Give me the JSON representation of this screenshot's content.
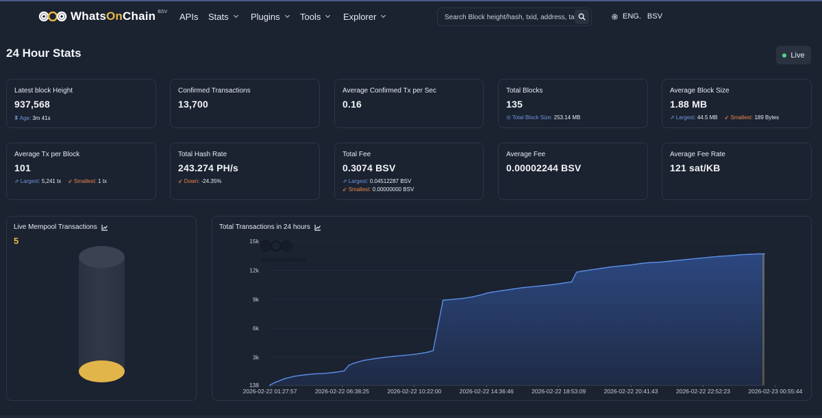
{
  "nav": {
    "brand": {
      "name_pre": "Whats",
      "name_on": "On",
      "name_post": "Chain",
      "sup": "BSV",
      "icon": "whatsonchain-logo-icon"
    },
    "items": [
      "APIs",
      "Stats",
      "Plugins",
      "Tools",
      "Explorer"
    ],
    "search_placeholder": "Search Block height/hash, txid, address, tags",
    "language": "ENG.",
    "network": "BSV"
  },
  "page": {
    "title": "24 Hour Stats",
    "live_label": "Live"
  },
  "cards": {
    "latest_block": {
      "label": "Latest block Height",
      "value": "937,568",
      "sub_key": "Age:",
      "sub_val": "3m 41s"
    },
    "confirmed_tx": {
      "label": "Confirmed Transactions",
      "value": "13,700"
    },
    "avg_tx_sec": {
      "label": "Average Confirmed Tx per Sec",
      "value": "0.16"
    },
    "total_blocks": {
      "label": "Total Blocks",
      "value": "135",
      "sub_key": "Total Block Size:",
      "sub_val": "253.14 MB"
    },
    "avg_block_size": {
      "label": "Average Block Size",
      "value": "1.88 MB",
      "largest_key": "Largest:",
      "largest_val": "44.5 MB",
      "smallest_key": "Smallest:",
      "smallest_val": "189 Bytes"
    },
    "avg_tx_block": {
      "label": "Average Tx per Block",
      "value": "101",
      "largest_key": "Largest:",
      "largest_val": "5,241 tx",
      "smallest_key": "Smallest:",
      "smallest_val": "1 tx"
    },
    "hash_rate": {
      "label": "Total Hash Rate",
      "value": "243.274 PH/s",
      "sub_key": "Down:",
      "sub_val": "-24.35%"
    },
    "total_fee": {
      "label": "Total Fee",
      "value": "0.3074 BSV",
      "largest_key": "Largest:",
      "largest_val": "0.04512287 BSV",
      "smallest_key": "Smallest:",
      "smallest_val": "0.00000000 BSV"
    },
    "avg_fee": {
      "label": "Average Fee",
      "value": "0.00002244 BSV"
    },
    "avg_fee_rate": {
      "label": "Average Fee Rate",
      "value": "121 sat/KB"
    }
  },
  "mempool": {
    "title": "Live Mempool Transactions",
    "count": "5"
  },
  "colors": {
    "accent": "#e9b949",
    "line": "#5b8fe8",
    "fill": "#243b6b",
    "live": "#53d486",
    "blue": "#6e96e0",
    "orange": "#e9864a"
  },
  "chart_data": {
    "type": "area",
    "title": "Total Transactions in 24 hours",
    "watermark": "WhatsOnChain",
    "xlabel": "",
    "ylabel": "",
    "ylim": [
      138,
      15000
    ],
    "y_ticks": [
      138,
      3000,
      6000,
      9000,
      12000,
      15000
    ],
    "y_tick_labels": [
      "138",
      "3k",
      "6k",
      "9k",
      "12k",
      "15k"
    ],
    "x_tick_labels": [
      "2026-02-22 01:27:57",
      "2026-02-22 06:38:25",
      "2026-02-22 10:22:00",
      "2026-02-22 14:36:46",
      "2026-02-22 18:53:09",
      "2026-02-22 20:41:43",
      "2026-02-22 22:52:23",
      "2026-02-23 00:55:44"
    ],
    "x_domain": [
      0,
      100
    ],
    "x_ticks": [
      0,
      14.6,
      29.2,
      43.8,
      58.4,
      73.0,
      87.6,
      102.2
    ],
    "series": [
      {
        "name": "Total Transactions",
        "x": [
          0,
          1,
          3,
          5,
          7,
          9,
          11,
          13,
          15,
          16,
          17,
          19,
          21,
          23,
          25,
          27,
          29,
          31,
          32,
          33,
          35,
          37,
          39,
          41,
          43,
          44,
          45,
          47,
          49,
          51,
          53,
          55,
          57,
          59,
          61,
          62,
          63,
          65,
          67,
          69,
          71,
          73,
          75,
          77,
          79,
          81,
          83,
          85,
          87,
          89,
          91,
          93,
          95,
          97,
          99,
          100
        ],
        "y": [
          138,
          400,
          800,
          1050,
          1200,
          1300,
          1350,
          1450,
          1600,
          2200,
          2400,
          2700,
          2850,
          3000,
          3100,
          3200,
          3300,
          3450,
          3550,
          3700,
          8900,
          9000,
          9100,
          9250,
          9500,
          9650,
          9750,
          9900,
          10050,
          10200,
          10300,
          10400,
          10500,
          10650,
          10800,
          11800,
          11900,
          12050,
          12200,
          12350,
          12450,
          12550,
          12700,
          12800,
          12850,
          12950,
          13050,
          13150,
          13250,
          13350,
          13450,
          13500,
          13600,
          13650,
          13700,
          13700
        ]
      }
    ],
    "grid": true,
    "legend": "none"
  }
}
